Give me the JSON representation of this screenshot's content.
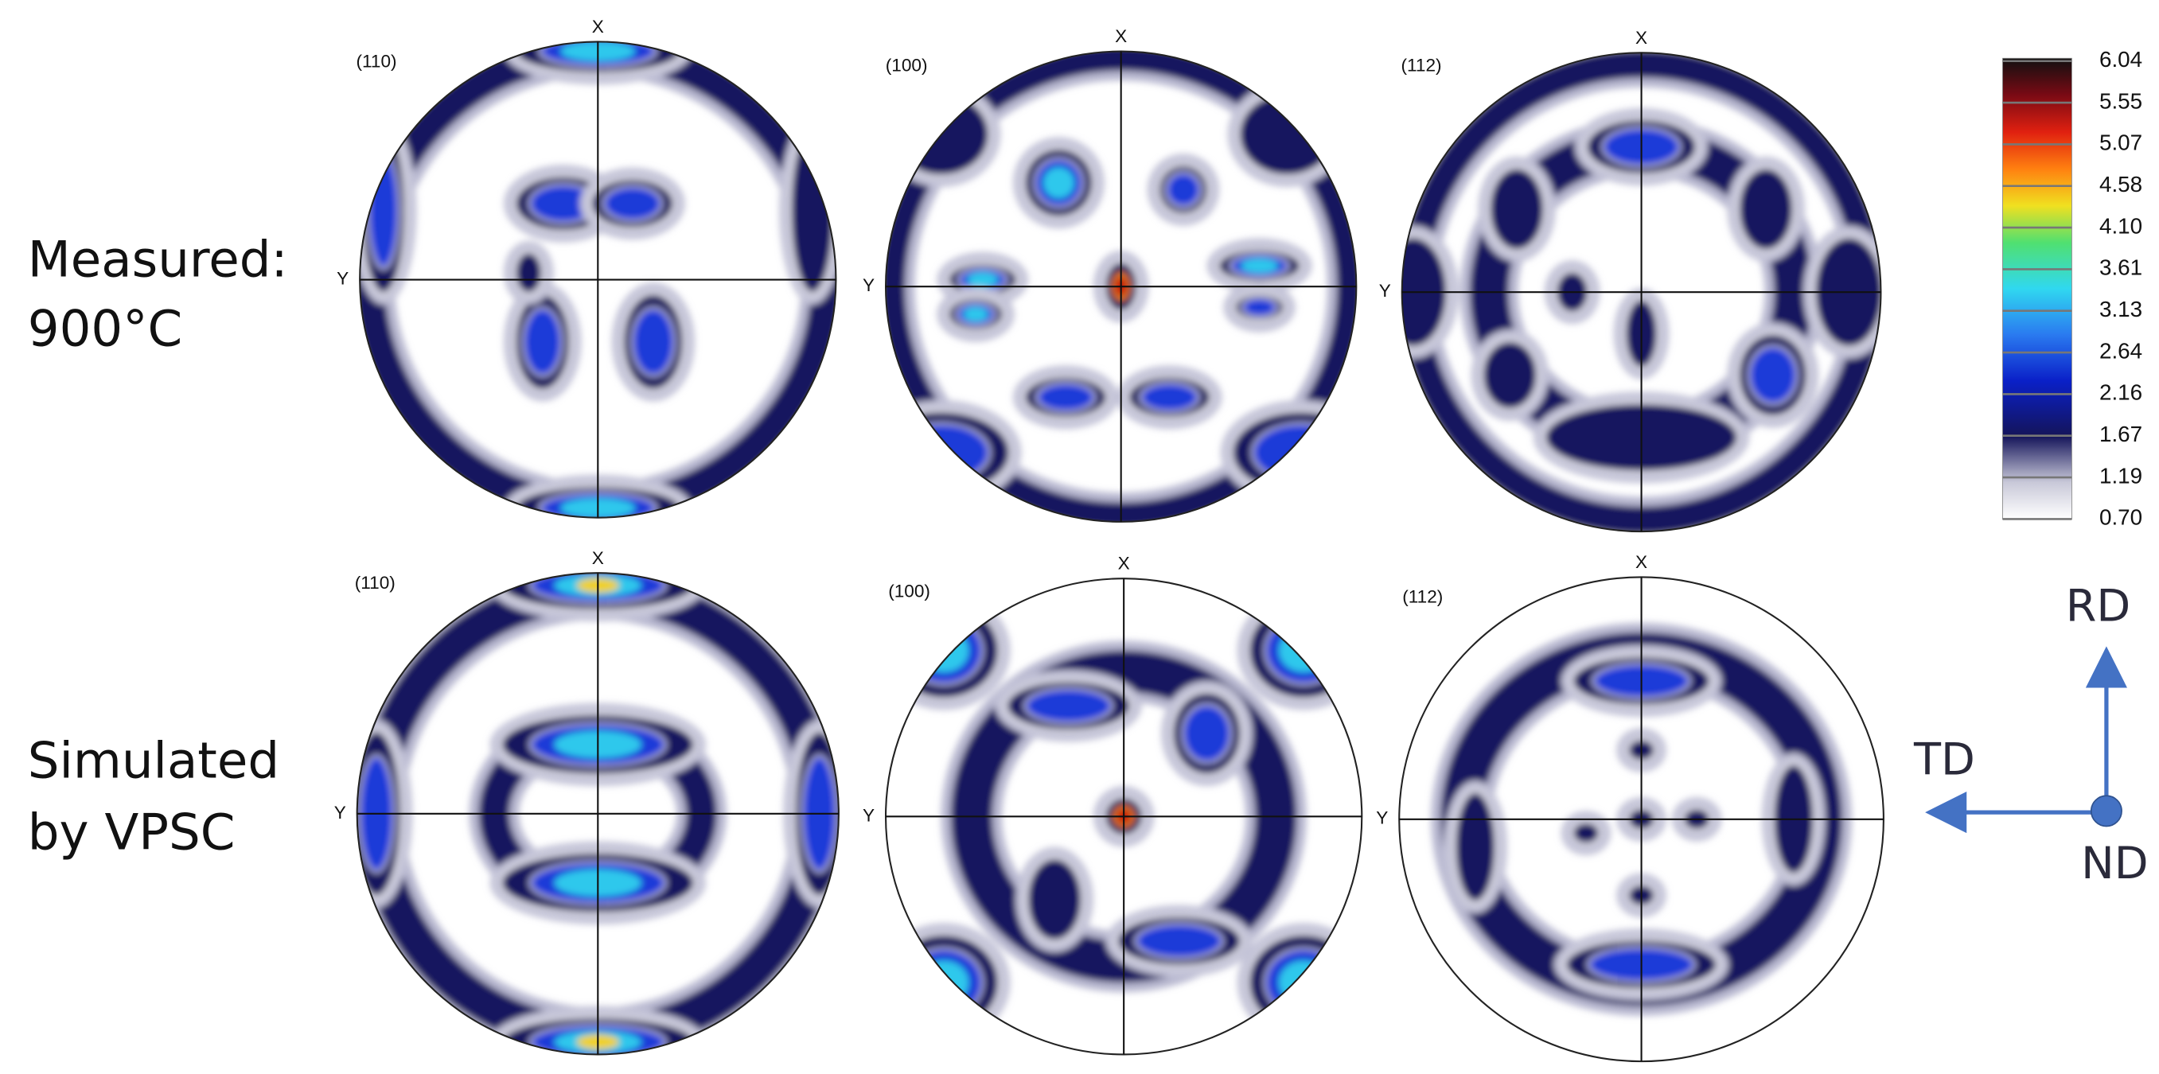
{
  "row_labels": [
    [
      "Measured:",
      "900°C"
    ],
    [
      "Simulated",
      "by VPSC"
    ]
  ],
  "pole_figures": [
    {
      "label": "(110)",
      "x_axis": "X",
      "y_axis": "Y"
    },
    {
      "label": "(100)",
      "x_axis": "X",
      "y_axis": "Y"
    },
    {
      "label": "(112)",
      "x_axis": "X",
      "y_axis": "Y"
    },
    {
      "label": "(110)",
      "x_axis": "X",
      "y_axis": "Y"
    },
    {
      "label": "(100)",
      "x_axis": "X",
      "y_axis": "Y"
    },
    {
      "label": "(112)",
      "x_axis": "X",
      "y_axis": "Y"
    }
  ],
  "colorbar": {
    "labels": [
      "6.04",
      "5.55",
      "5.07",
      "4.58",
      "4.10",
      "3.61",
      "3.13",
      "2.64",
      "2.16",
      "1.67",
      "1.19",
      "0.70"
    ]
  },
  "directions": {
    "rd": "RD",
    "td": "TD",
    "nd": "ND"
  }
}
